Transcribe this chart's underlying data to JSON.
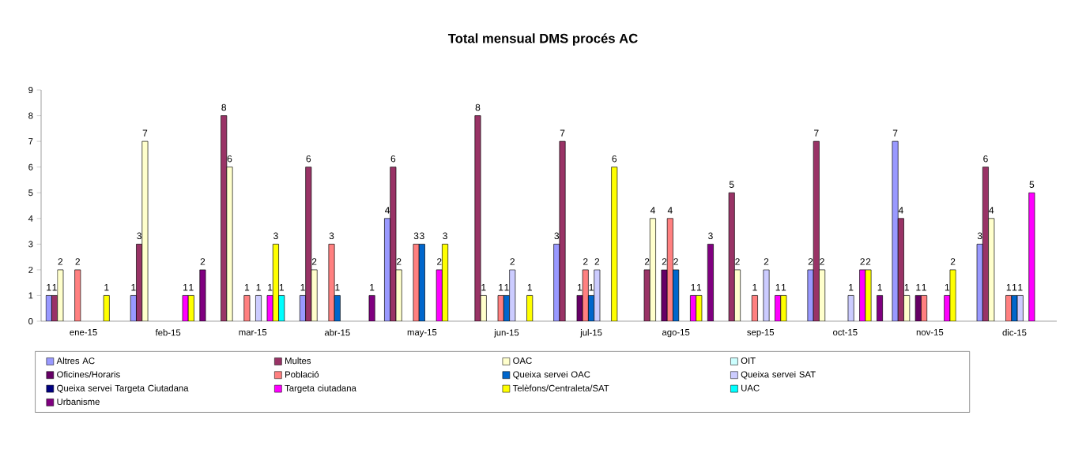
{
  "chart_data": {
    "type": "bar",
    "title": "Total mensual DMS procés AC",
    "categories": [
      "ene-15",
      "feb-15",
      "mar-15",
      "abr-15",
      "may-15",
      "jun-15",
      "jul-15",
      "ago-15",
      "sep-15",
      "oct-15",
      "nov-15",
      "dic-15"
    ],
    "series": [
      {
        "name": "Altres AC",
        "color": "#9999ff",
        "values": [
          1,
          1,
          null,
          1,
          4,
          null,
          3,
          null,
          null,
          2,
          7,
          3
        ]
      },
      {
        "name": "Multes",
        "color": "#993366",
        "values": [
          1,
          3,
          8,
          6,
          6,
          8,
          7,
          2,
          5,
          7,
          4,
          6
        ]
      },
      {
        "name": "OAC",
        "color": "#ffffcc",
        "values": [
          2,
          7,
          6,
          2,
          2,
          1,
          null,
          4,
          2,
          2,
          1,
          4
        ]
      },
      {
        "name": "OIT",
        "color": "#ccffff",
        "values": [
          null,
          null,
          null,
          null,
          null,
          null,
          null,
          null,
          null,
          null,
          null,
          null
        ]
      },
      {
        "name": "Oficines/Horaris",
        "color": "#660066",
        "values": [
          null,
          null,
          null,
          null,
          null,
          null,
          1,
          2,
          null,
          null,
          1,
          null
        ]
      },
      {
        "name": "Població",
        "color": "#ff8080",
        "values": [
          2,
          null,
          1,
          3,
          3,
          1,
          2,
          4,
          1,
          null,
          1,
          1
        ]
      },
      {
        "name": "Queixa servei OAC",
        "color": "#0066cc",
        "values": [
          null,
          null,
          null,
          1,
          3,
          1,
          1,
          2,
          null,
          null,
          null,
          1
        ]
      },
      {
        "name": "Queixa servei SAT",
        "color": "#ccccff",
        "values": [
          null,
          null,
          1,
          null,
          null,
          2,
          2,
          null,
          2,
          1,
          null,
          1
        ]
      },
      {
        "name": "Queixa servei Targeta Ciutadana",
        "color": "#000080",
        "values": [
          null,
          null,
          null,
          null,
          null,
          null,
          null,
          null,
          null,
          null,
          null,
          null
        ]
      },
      {
        "name": "Targeta ciutadana",
        "color": "#ff00ff",
        "values": [
          null,
          1,
          1,
          null,
          2,
          null,
          null,
          1,
          1,
          2,
          1,
          5
        ]
      },
      {
        "name": "Telèfons/Centraleta/SAT",
        "color": "#ffff00",
        "values": [
          1,
          1,
          3,
          null,
          3,
          1,
          6,
          1,
          1,
          2,
          2,
          null
        ]
      },
      {
        "name": "UAC",
        "color": "#00ffff",
        "values": [
          null,
          null,
          1,
          null,
          null,
          null,
          null,
          null,
          null,
          null,
          null,
          null
        ]
      },
      {
        "name": "Urbanisme",
        "color": "#800080",
        "values": [
          null,
          2,
          null,
          1,
          null,
          null,
          null,
          3,
          null,
          1,
          null,
          null
        ]
      }
    ],
    "ylim": [
      0,
      9
    ],
    "yticks": [
      0,
      1,
      2,
      3,
      4,
      5,
      6,
      7,
      8,
      9
    ],
    "data_labels": true,
    "legend": "bottom"
  }
}
